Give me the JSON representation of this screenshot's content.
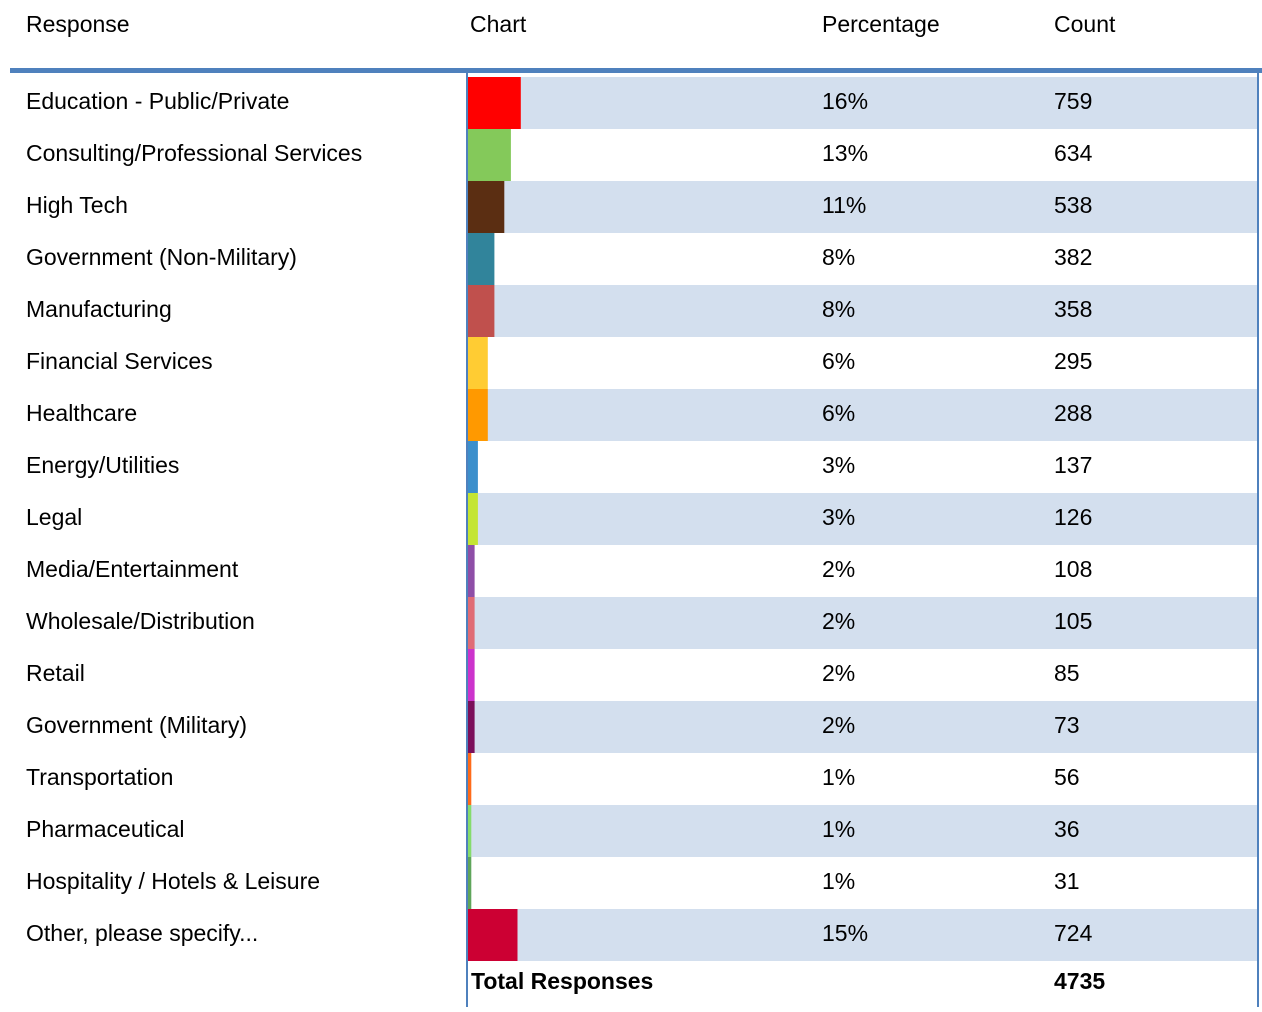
{
  "chart_data": {
    "type": "bar",
    "columns": [
      "Response",
      "Chart",
      "Percentage",
      "Count"
    ],
    "categories": [
      "Education - Public/Private",
      "Consulting/Professional Services",
      "High Tech",
      "Government (Non-Military)",
      "Manufacturing",
      "Financial Services",
      "Healthcare",
      "Energy/Utilities",
      "Legal",
      "Media/Entertainment",
      "Wholesale/Distribution",
      "Retail",
      "Government (Military)",
      "Transportation",
      "Pharmaceutical",
      "Hospitality / Hotels & Leisure",
      "Other, please specify..."
    ],
    "values": [
      16,
      13,
      11,
      8,
      8,
      6,
      6,
      3,
      3,
      2,
      2,
      2,
      2,
      1,
      1,
      1,
      15
    ],
    "value_labels": [
      "16%",
      "13%",
      "11%",
      "8%",
      "8%",
      "6%",
      "6%",
      "3%",
      "3%",
      "2%",
      "2%",
      "2%",
      "2%",
      "1%",
      "1%",
      "1%",
      "15%"
    ],
    "counts": [
      759,
      634,
      538,
      382,
      358,
      295,
      288,
      137,
      126,
      108,
      105,
      85,
      73,
      56,
      36,
      31,
      724
    ],
    "colors": [
      "#ff0000",
      "#84c95a",
      "#5b2e12",
      "#31849b",
      "#c0504d",
      "#ffcc33",
      "#ff9900",
      "#3c8fcc",
      "#c4e534",
      "#8e4ea7",
      "#e06c75",
      "#cc33cc",
      "#7b0f5a",
      "#ff6b1a",
      "#85dc6c",
      "#5fa55a",
      "#cc0033"
    ],
    "total_label": "Total Responses",
    "total": 4735
  }
}
